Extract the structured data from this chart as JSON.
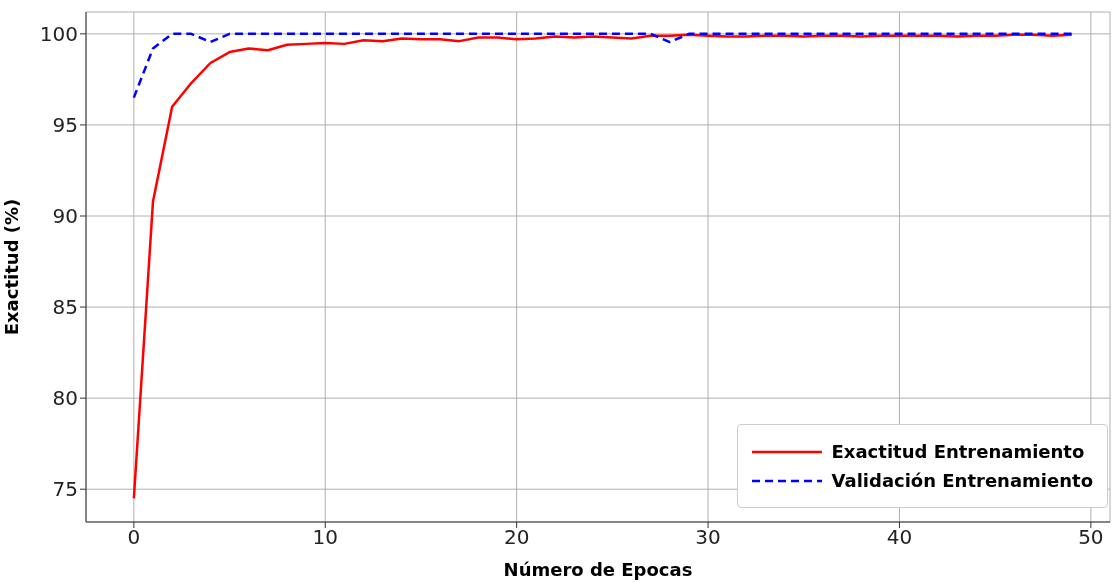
{
  "chart_data": {
    "type": "line",
    "xlabel": "Número de Epocas",
    "ylabel": "Exactitud (%)",
    "x": [
      0,
      1,
      2,
      3,
      4,
      5,
      6,
      7,
      8,
      9,
      10,
      11,
      12,
      13,
      14,
      15,
      16,
      17,
      18,
      19,
      20,
      21,
      22,
      23,
      24,
      25,
      26,
      27,
      28,
      29,
      30,
      31,
      32,
      33,
      34,
      35,
      36,
      37,
      38,
      39,
      40,
      41,
      42,
      43,
      44,
      45,
      46,
      47,
      48,
      49
    ],
    "series": [
      {
        "name": "Exactitud Entrenamiento",
        "color": "#ff0000",
        "line_style": "solid",
        "values": [
          74.5,
          90.8,
          96.0,
          97.3,
          98.4,
          99.0,
          99.2,
          99.1,
          99.4,
          99.45,
          99.5,
          99.45,
          99.65,
          99.6,
          99.75,
          99.7,
          99.7,
          99.6,
          99.8,
          99.8,
          99.7,
          99.75,
          99.85,
          99.8,
          99.85,
          99.8,
          99.75,
          99.9,
          99.9,
          99.95,
          99.9,
          99.85,
          99.85,
          99.9,
          99.9,
          99.85,
          99.9,
          99.9,
          99.85,
          99.9,
          99.9,
          99.9,
          99.9,
          99.85,
          99.9,
          99.9,
          99.95,
          99.95,
          99.9,
          99.95
        ]
      },
      {
        "name": "Validación Entrenamiento",
        "color": "#0000ff",
        "line_style": "dashed",
        "values": [
          96.5,
          99.2,
          100,
          100,
          99.55,
          100,
          100,
          100,
          100,
          100,
          100,
          100,
          100,
          100,
          100,
          100,
          100,
          100,
          100,
          100,
          100,
          100,
          100,
          100,
          100,
          100,
          100,
          100,
          99.55,
          100,
          100,
          100,
          100,
          100,
          100,
          100,
          100,
          100,
          100,
          100,
          100,
          100,
          100,
          100,
          100,
          100,
          100,
          100,
          100,
          100
        ]
      }
    ],
    "xlim": [
      -2.5,
      51
    ],
    "xticks": [
      0,
      10,
      20,
      30,
      40,
      50
    ],
    "ylim": [
      73.2,
      101.2
    ],
    "yticks": [
      75,
      80,
      85,
      90,
      95,
      100
    ],
    "grid": true,
    "legend": "bottom right",
    "marker": "none"
  }
}
